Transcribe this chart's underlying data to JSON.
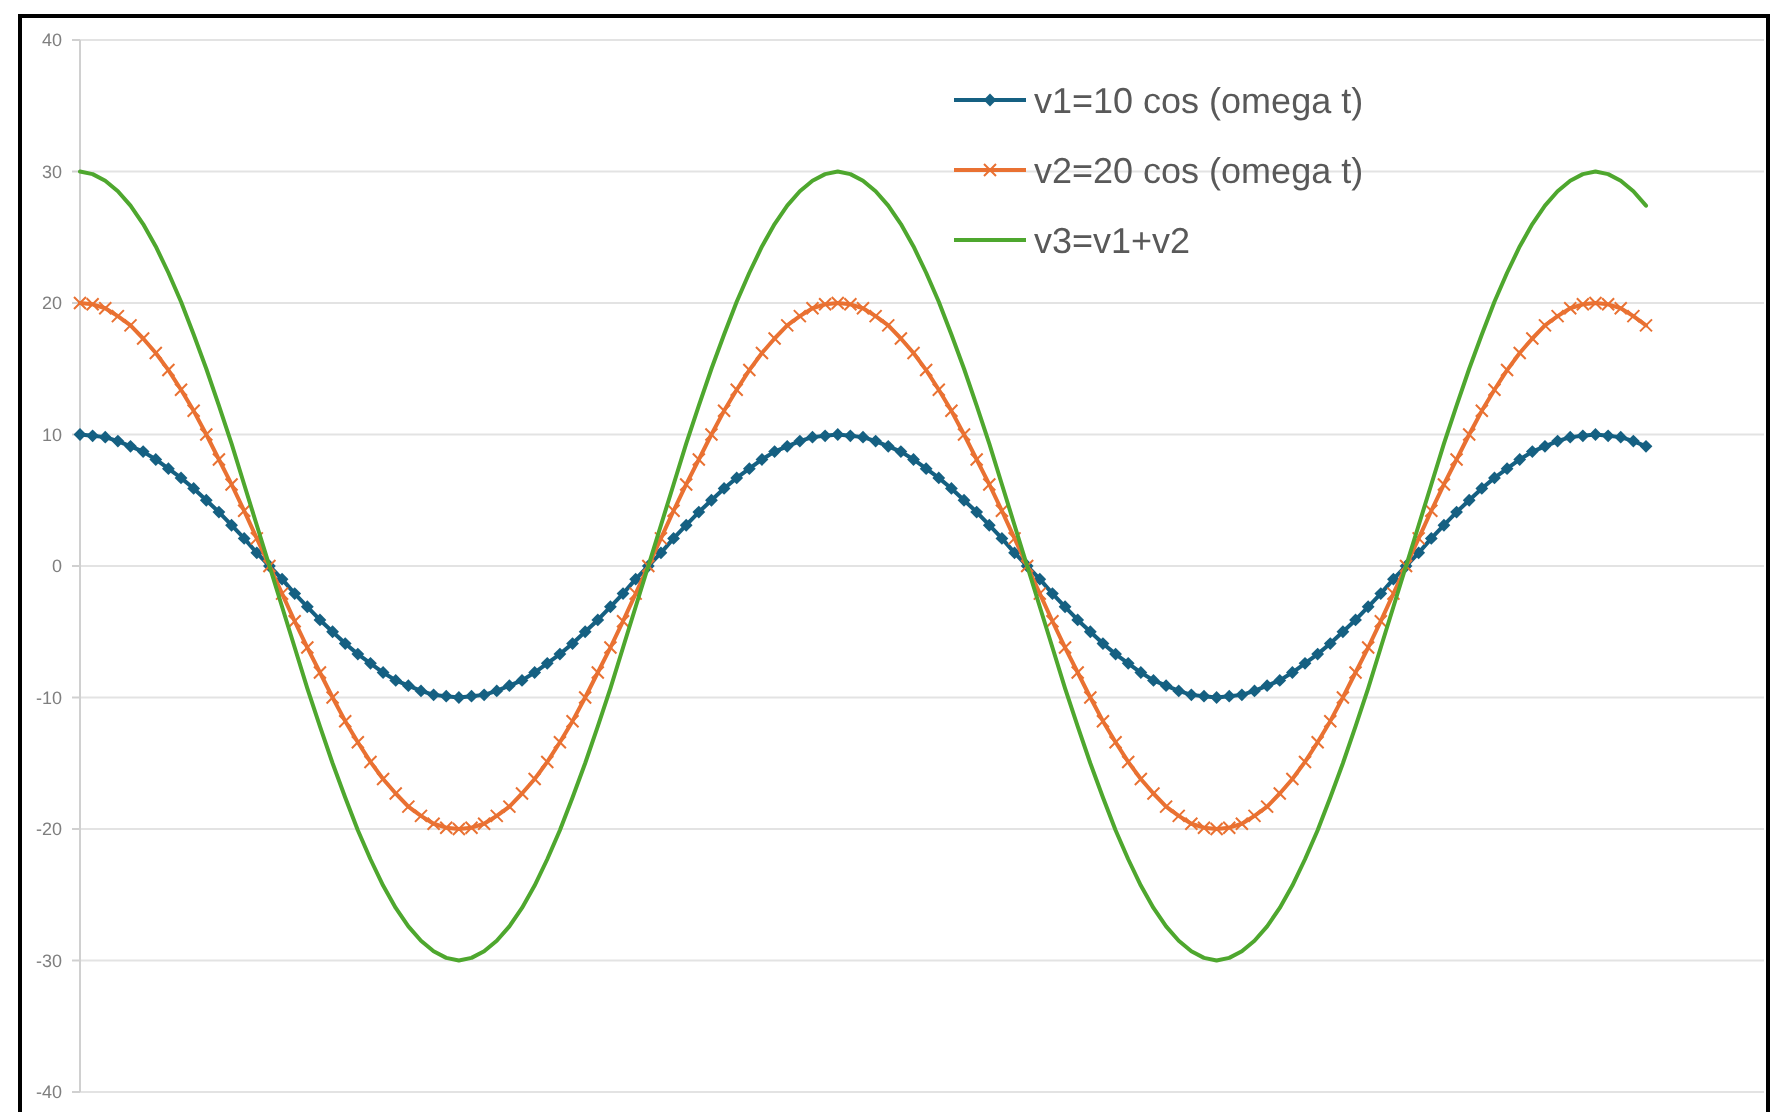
{
  "chart_data": {
    "type": "line",
    "categories": [
      null,
      null,
      null,
      null,
      null,
      null,
      null,
      null,
      null,
      null,
      null,
      null,
      null,
      null,
      null,
      null,
      null,
      null,
      null,
      null,
      null,
      null,
      null,
      null,
      null,
      null,
      null,
      null,
      null,
      null,
      null,
      null,
      null,
      null,
      null,
      null,
      null,
      null,
      null,
      null,
      null,
      null,
      null,
      null,
      null,
      null,
      null,
      null,
      null,
      null,
      null,
      null,
      null,
      null,
      null,
      null,
      null,
      null,
      null,
      null,
      null,
      null,
      null,
      null,
      null,
      null,
      null,
      null,
      null,
      null,
      null,
      null,
      null,
      null,
      null,
      null,
      null,
      null,
      null,
      null,
      null,
      null,
      null,
      null,
      null,
      null,
      null,
      null,
      null,
      null,
      null,
      null,
      null,
      null,
      null,
      null,
      null,
      null,
      null,
      null,
      null,
      null,
      null,
      null,
      null,
      null,
      null,
      null,
      null,
      null,
      null,
      null,
      null,
      null,
      null,
      null,
      null,
      null,
      null,
      null,
      null,
      null,
      null,
      null,
      null
    ],
    "ylim": [
      -40,
      40
    ],
    "yticks": [
      -40,
      -30,
      -20,
      -10,
      0,
      10,
      20,
      30,
      40
    ],
    "grid": "y",
    "legend": "top right",
    "tick_labels": "y",
    "line_style": "solid",
    "series": [
      {
        "name": "v1=10 cos (omega t)",
        "color": "#156082",
        "marker": "diamond",
        "values": [
          10,
          9.9,
          9.8,
          9.5,
          9.1,
          8.7,
          8.1,
          7.4,
          6.7,
          5.9,
          5,
          4.1,
          3.1,
          2.1,
          1,
          0,
          -1,
          -2.1,
          -3.1,
          -4.1,
          -5,
          -5.9,
          -6.7,
          -7.4,
          -8.1,
          -8.7,
          -9.1,
          -9.5,
          -9.8,
          -9.9,
          -10,
          -9.9,
          -9.8,
          -9.5,
          -9.1,
          -8.7,
          -8.1,
          -7.4,
          -6.7,
          -5.9,
          -5,
          -4.1,
          -3.1,
          -2.1,
          -1,
          0,
          1,
          2.1,
          3.1,
          4.1,
          5,
          5.9,
          6.7,
          7.4,
          8.1,
          8.7,
          9.1,
          9.5,
          9.8,
          9.9,
          10,
          9.9,
          9.8,
          9.5,
          9.1,
          8.7,
          8.1,
          7.4,
          6.7,
          5.9,
          5,
          4.1,
          3.1,
          2.1,
          1,
          0,
          -1,
          -2.1,
          -3.1,
          -4.1,
          -5,
          -5.9,
          -6.7,
          -7.4,
          -8.1,
          -8.7,
          -9.1,
          -9.5,
          -9.8,
          -9.9,
          -10,
          -9.9,
          -9.8,
          -9.5,
          -9.1,
          -8.7,
          -8.1,
          -7.4,
          -6.7,
          -5.9,
          -5,
          -4.1,
          -3.1,
          -2.1,
          -1,
          0,
          1,
          2.1,
          3.1,
          4.1,
          5,
          5.9,
          6.7,
          7.4,
          8.1,
          8.7,
          9.1,
          9.5,
          9.8,
          9.9,
          10,
          9.9,
          9.8,
          9.5,
          9.1
        ]
      },
      {
        "name": "v2=20 cos (omega t)",
        "color": "#e97132",
        "marker": "cross",
        "values": [
          20,
          19.9,
          19.6,
          19,
          18.3,
          17.3,
          16.2,
          14.9,
          13.4,
          11.8,
          10,
          8.1,
          6.2,
          4.2,
          2.1,
          0,
          -2.1,
          -4.2,
          -6.2,
          -8.1,
          -10,
          -11.8,
          -13.4,
          -14.9,
          -16.2,
          -17.3,
          -18.3,
          -19,
          -19.6,
          -19.9,
          -20,
          -19.9,
          -19.6,
          -19,
          -18.3,
          -17.3,
          -16.2,
          -14.9,
          -13.4,
          -11.8,
          -10,
          -8.1,
          -6.2,
          -4.2,
          -2.1,
          0,
          2.1,
          4.2,
          6.2,
          8.1,
          10,
          11.8,
          13.4,
          14.9,
          16.2,
          17.3,
          18.3,
          19,
          19.6,
          19.9,
          20,
          19.9,
          19.6,
          19,
          18.3,
          17.3,
          16.2,
          14.9,
          13.4,
          11.8,
          10,
          8.1,
          6.2,
          4.2,
          2.1,
          0,
          -2.1,
          -4.2,
          -6.2,
          -8.1,
          -10,
          -11.8,
          -13.4,
          -14.9,
          -16.2,
          -17.3,
          -18.3,
          -19,
          -19.6,
          -19.9,
          -20,
          -19.9,
          -19.6,
          -19,
          -18.3,
          -17.3,
          -16.2,
          -14.9,
          -13.4,
          -11.8,
          -10,
          -8.1,
          -6.2,
          -4.2,
          -2.1,
          0,
          2.1,
          4.2,
          6.2,
          8.1,
          10,
          11.8,
          13.4,
          14.9,
          16.2,
          17.3,
          18.3,
          19,
          19.6,
          19.9,
          20,
          19.9,
          19.6,
          19,
          18.3
        ]
      },
      {
        "name": "v3=v1+v2",
        "color": "#4ea72e",
        "marker": "none",
        "values": [
          30,
          29.8,
          29.3,
          28.5,
          27.4,
          26,
          24.3,
          22.3,
          20.1,
          17.6,
          15,
          12.2,
          9.3,
          6.2,
          3.1,
          0,
          -3.1,
          -6.2,
          -9.3,
          -12.2,
          -15,
          -17.6,
          -20.1,
          -22.3,
          -24.3,
          -26,
          -27.4,
          -28.5,
          -29.3,
          -29.8,
          -30,
          -29.8,
          -29.3,
          -28.5,
          -27.4,
          -26,
          -24.3,
          -22.3,
          -20.1,
          -17.6,
          -15,
          -12.2,
          -9.3,
          -6.2,
          -3.1,
          0,
          3.1,
          6.2,
          9.3,
          12.2,
          15,
          17.6,
          20.1,
          22.3,
          24.3,
          26,
          27.4,
          28.5,
          29.3,
          29.8,
          30,
          29.8,
          29.3,
          28.5,
          27.4,
          26,
          24.3,
          22.3,
          20.1,
          17.6,
          15,
          12.2,
          9.3,
          6.2,
          3.1,
          0,
          -3.1,
          -6.2,
          -9.3,
          -12.2,
          -15,
          -17.6,
          -20.1,
          -22.3,
          -24.3,
          -26,
          -27.4,
          -28.5,
          -29.3,
          -29.8,
          -30,
          -29.8,
          -29.3,
          -28.5,
          -27.4,
          -26,
          -24.3,
          -22.3,
          -20.1,
          -17.6,
          -15,
          -12.2,
          -9.3,
          -6.2,
          -3.1,
          0,
          3.1,
          6.2,
          9.3,
          12.2,
          15,
          17.6,
          20.1,
          22.3,
          24.3,
          26,
          27.4,
          28.5,
          29.3,
          29.8,
          30,
          29.8,
          29.3,
          28.5,
          27.4
        ]
      }
    ]
  }
}
